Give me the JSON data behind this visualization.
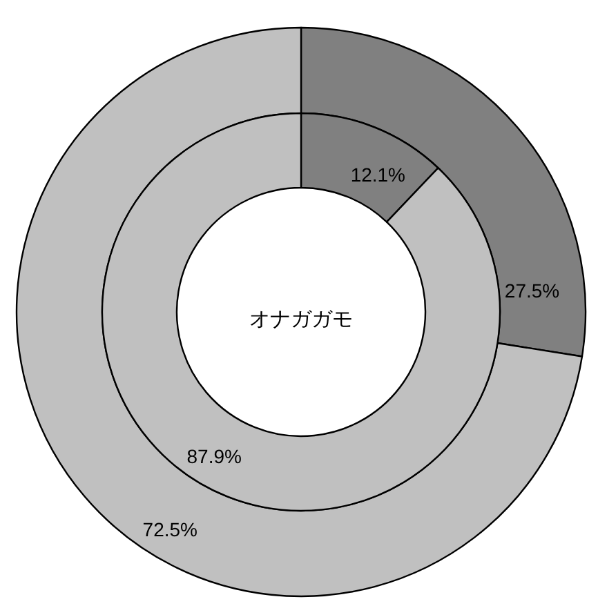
{
  "chart_data": [
    {
      "type": "donut",
      "categories": [
        null,
        null
      ],
      "values": [
        27.5,
        72.5
      ],
      "colors": [
        "#808080",
        "#c0c0c0"
      ],
      "value_labels": [
        "27.5%",
        "72.5%"
      ]
    },
    {
      "type": "donut",
      "categories": [
        null,
        null
      ],
      "values": [
        12.1,
        87.9
      ],
      "colors": [
        "#808080",
        "#c0c0c0"
      ],
      "value_labels": [
        "12.1%",
        "87.9%"
      ],
      "annotations": [
        "オナガガモ"
      ]
    }
  ]
}
